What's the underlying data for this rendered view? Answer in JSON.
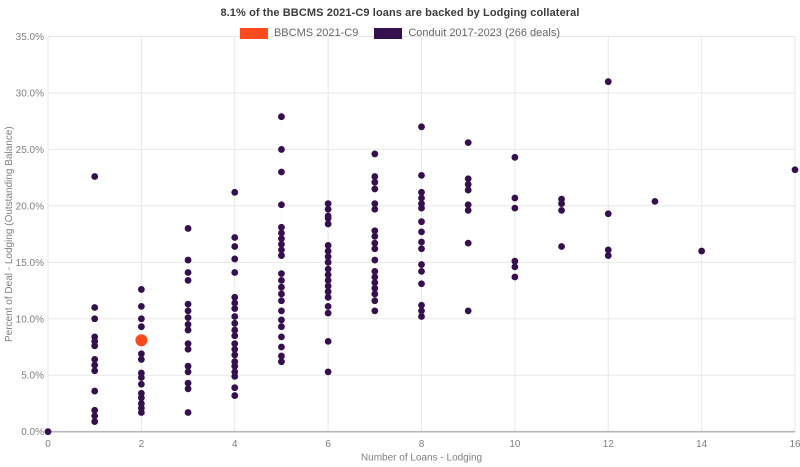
{
  "title": "8.1% of the BBCMS 2021-C9 loans are backed by Lodging collateral",
  "legend": [
    {
      "label": "BBCMS 2021-C9",
      "color": "#fb4b1e"
    },
    {
      "label": "Conduit 2017-2023 (266 deals)",
      "color": "#36104e"
    }
  ],
  "colors": {
    "background": "#ffffff",
    "gridline": "#e8e8e8",
    "axis_line": "#b8b8b8",
    "tick_text": "#7f7f7f",
    "axis_title_text": "#7f7f7f",
    "title_text": "#3c3c3c"
  },
  "chart_data": {
    "type": "scatter",
    "title": "8.1% of the BBCMS 2021-C9 loans are backed by Lodging collateral",
    "xlabel": "Number of Loans - Lodging",
    "ylabel": "Percent of Deal - Lodging (Outstanding Balance)",
    "xlim": [
      0,
      16
    ],
    "ylim": [
      0,
      35
    ],
    "x_ticks": [
      0,
      2,
      4,
      6,
      8,
      10,
      12,
      14,
      16
    ],
    "y_ticks": [
      0,
      5,
      10,
      15,
      20,
      25,
      30,
      35
    ],
    "y_tick_labels": [
      "0.0%",
      "5.0%",
      "10.0%",
      "15.0%",
      "20.0%",
      "25.0%",
      "30.0%",
      "35.0%"
    ],
    "grid": true,
    "legend_position": "top-center",
    "series": [
      {
        "name": "BBCMS 2021-C9",
        "color": "#fb4b1e",
        "marker_radius": 6,
        "points": [
          [
            2,
            8.1
          ]
        ]
      },
      {
        "name": "Conduit 2017-2023 (266 deals)",
        "color": "#36104e",
        "marker_radius": 3.4,
        "points": [
          [
            0,
            0.0
          ],
          [
            1,
            22.6
          ],
          [
            1,
            11.0
          ],
          [
            1,
            10.0
          ],
          [
            1,
            8.4
          ],
          [
            1,
            8.0
          ],
          [
            1,
            7.6
          ],
          [
            1,
            6.4
          ],
          [
            1,
            5.9
          ],
          [
            1,
            5.4
          ],
          [
            1,
            3.6
          ],
          [
            1,
            1.9
          ],
          [
            1,
            1.4
          ],
          [
            1,
            0.9
          ],
          [
            2,
            12.6
          ],
          [
            2,
            11.1
          ],
          [
            2,
            10.0
          ],
          [
            2,
            9.3
          ],
          [
            2,
            6.9
          ],
          [
            2,
            6.4
          ],
          [
            2,
            5.2
          ],
          [
            2,
            4.8
          ],
          [
            2,
            4.2
          ],
          [
            2,
            3.4
          ],
          [
            2,
            3.0
          ],
          [
            2,
            2.5
          ],
          [
            2,
            2.1
          ],
          [
            2,
            1.7
          ],
          [
            3,
            18.0
          ],
          [
            3,
            15.2
          ],
          [
            3,
            14.1
          ],
          [
            3,
            13.4
          ],
          [
            3,
            11.3
          ],
          [
            3,
            10.7
          ],
          [
            3,
            10.1
          ],
          [
            3,
            9.5
          ],
          [
            3,
            9.0
          ],
          [
            3,
            7.8
          ],
          [
            3,
            7.3
          ],
          [
            3,
            5.8
          ],
          [
            3,
            5.3
          ],
          [
            3,
            4.3
          ],
          [
            3,
            3.8
          ],
          [
            3,
            1.7
          ],
          [
            4,
            21.2
          ],
          [
            4,
            17.2
          ],
          [
            4,
            16.4
          ],
          [
            4,
            15.3
          ],
          [
            4,
            14.1
          ],
          [
            4,
            11.9
          ],
          [
            4,
            11.4
          ],
          [
            4,
            10.9
          ],
          [
            4,
            10.2
          ],
          [
            4,
            9.6
          ],
          [
            4,
            9.0
          ],
          [
            4,
            8.5
          ],
          [
            4,
            7.8
          ],
          [
            4,
            7.3
          ],
          [
            4,
            6.8
          ],
          [
            4,
            6.2
          ],
          [
            4,
            5.8
          ],
          [
            4,
            5.3
          ],
          [
            4,
            4.9
          ],
          [
            4,
            3.9
          ],
          [
            4,
            3.2
          ],
          [
            5,
            27.9
          ],
          [
            5,
            25.0
          ],
          [
            5,
            23.0
          ],
          [
            5,
            20.1
          ],
          [
            5,
            18.1
          ],
          [
            5,
            17.6
          ],
          [
            5,
            17.1
          ],
          [
            5,
            16.6
          ],
          [
            5,
            16.1
          ],
          [
            5,
            15.6
          ],
          [
            5,
            14.0
          ],
          [
            5,
            13.4
          ],
          [
            5,
            12.8
          ],
          [
            5,
            12.2
          ],
          [
            5,
            11.6
          ],
          [
            5,
            10.7
          ],
          [
            5,
            9.9
          ],
          [
            5,
            9.3
          ],
          [
            5,
            8.4
          ],
          [
            5,
            7.5
          ],
          [
            5,
            6.7
          ],
          [
            5,
            6.2
          ],
          [
            6,
            20.2
          ],
          [
            6,
            19.7
          ],
          [
            6,
            19.1
          ],
          [
            6,
            18.9
          ],
          [
            6,
            18.4
          ],
          [
            6,
            16.5
          ],
          [
            6,
            16.0
          ],
          [
            6,
            15.5
          ],
          [
            6,
            15.0
          ],
          [
            6,
            14.4
          ],
          [
            6,
            13.9
          ],
          [
            6,
            13.4
          ],
          [
            6,
            12.9
          ],
          [
            6,
            12.4
          ],
          [
            6,
            11.9
          ],
          [
            6,
            11.1
          ],
          [
            6,
            10.5
          ],
          [
            6,
            8.0
          ],
          [
            6,
            5.3
          ],
          [
            7,
            24.6
          ],
          [
            7,
            22.6
          ],
          [
            7,
            22.1
          ],
          [
            7,
            21.5
          ],
          [
            7,
            20.2
          ],
          [
            7,
            19.7
          ],
          [
            7,
            17.8
          ],
          [
            7,
            17.3
          ],
          [
            7,
            16.7
          ],
          [
            7,
            16.2
          ],
          [
            7,
            15.2
          ],
          [
            7,
            14.2
          ],
          [
            7,
            13.7
          ],
          [
            7,
            13.2
          ],
          [
            7,
            12.7
          ],
          [
            7,
            12.2
          ],
          [
            7,
            11.6
          ],
          [
            7,
            10.7
          ],
          [
            8,
            27.0
          ],
          [
            8,
            22.7
          ],
          [
            8,
            21.2
          ],
          [
            8,
            20.7
          ],
          [
            8,
            20.2
          ],
          [
            8,
            19.8
          ],
          [
            8,
            18.6
          ],
          [
            8,
            17.7
          ],
          [
            8,
            16.8
          ],
          [
            8,
            16.2
          ],
          [
            8,
            14.8
          ],
          [
            8,
            14.2
          ],
          [
            8,
            13.1
          ],
          [
            8,
            11.2
          ],
          [
            8,
            10.7
          ],
          [
            8,
            10.2
          ],
          [
            9,
            25.6
          ],
          [
            9,
            22.4
          ],
          [
            9,
            21.9
          ],
          [
            9,
            21.4
          ],
          [
            9,
            20.1
          ],
          [
            9,
            19.6
          ],
          [
            9,
            16.7
          ],
          [
            9,
            10.7
          ],
          [
            10,
            24.3
          ],
          [
            10,
            20.7
          ],
          [
            10,
            19.8
          ],
          [
            10,
            15.1
          ],
          [
            10,
            14.6
          ],
          [
            10,
            13.7
          ],
          [
            11,
            20.6
          ],
          [
            11,
            20.2
          ],
          [
            11,
            19.6
          ],
          [
            11,
            16.4
          ],
          [
            12,
            31.0
          ],
          [
            12,
            19.3
          ],
          [
            12,
            16.1
          ],
          [
            12,
            15.6
          ],
          [
            13,
            20.4
          ],
          [
            14,
            16.0
          ],
          [
            16,
            23.2
          ]
        ]
      }
    ]
  }
}
